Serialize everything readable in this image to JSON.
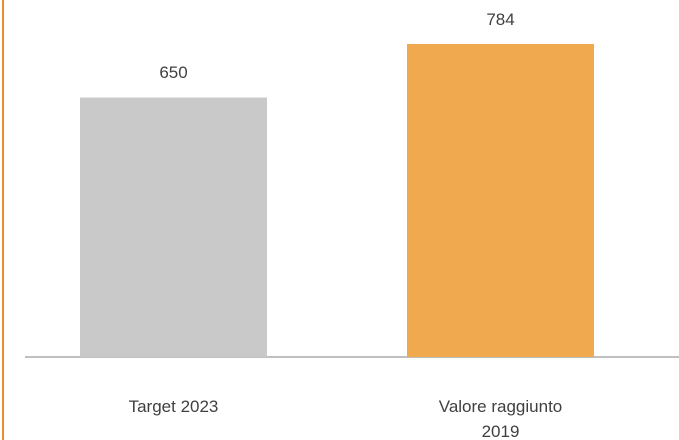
{
  "chart_data": {
    "type": "bar",
    "categories": [
      "Target 2023",
      "Valore raggiunto 2019"
    ],
    "values": [
      650,
      784
    ],
    "colors": [
      "#c9c9c9",
      "#f0a94f"
    ]
  }
}
